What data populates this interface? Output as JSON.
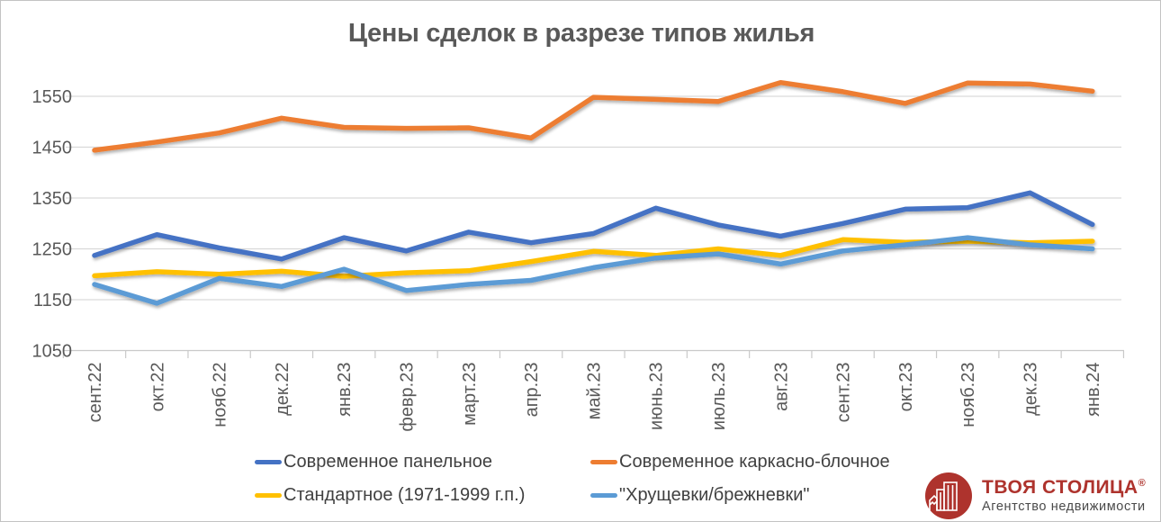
{
  "title": "Цены сделок в разрезе типов жилья",
  "chart_data": {
    "type": "line",
    "title": "Цены сделок в разрезе типов жилья",
    "categories": [
      "сент.22",
      "окт.22",
      "нояб.22",
      "дек.22",
      "янв.23",
      "февр.23",
      "март.23",
      "апр.23",
      "май.23",
      "июнь.23",
      "июль.23",
      "авг.23",
      "сент.23",
      "окт.23",
      "нояб.23",
      "дек.23",
      "янв.24"
    ],
    "series": [
      {
        "name": "Современное панельное",
        "color": "#4472C4",
        "values": [
          1237,
          1278,
          1252,
          1230,
          1272,
          1246,
          1283,
          1262,
          1280,
          1330,
          1297,
          1275,
          1300,
          1328,
          1331,
          1360,
          1298
        ]
      },
      {
        "name": "Современное каркасно-блочное",
        "color": "#ED7D31",
        "values": [
          1444,
          1460,
          1478,
          1507,
          1489,
          1487,
          1488,
          1468,
          1548,
          1544,
          1540,
          1577,
          1559,
          1536,
          1576,
          1574,
          1560
        ]
      },
      {
        "name": "Стандартное (1971-1999 г.п.)",
        "color": "#FFC000",
        "values": [
          1197,
          1205,
          1200,
          1206,
          1196,
          1203,
          1207,
          1225,
          1245,
          1237,
          1250,
          1237,
          1268,
          1263,
          1265,
          1262,
          1265
        ]
      },
      {
        "name": "\"Хрущевки/брежневки\"",
        "color": "#5B9BD5",
        "values": [
          1180,
          1143,
          1192,
          1176,
          1210,
          1168,
          1180,
          1188,
          1213,
          1232,
          1240,
          1220,
          1246,
          1258,
          1272,
          1258,
          1250
        ]
      }
    ],
    "yticks": [
      1050,
      1150,
      1250,
      1350,
      1450,
      1550
    ],
    "ylim": [
      1050,
      1650
    ],
    "grid": true,
    "legend_position": "bottom"
  },
  "colors": {
    "title": "#595959",
    "axis_labels": "#595959",
    "gridline": "#D9D9D9",
    "axis_line": "#C9C9C9",
    "legend_text": "#404040",
    "background": "#FFFFFF",
    "logo_red": "#AE332D",
    "logo_tagline": "#4A4A4A"
  },
  "logo": {
    "brand": "ТВОЯ СТОЛИЦА",
    "reg": "®",
    "tagline": "Агентство недвижимости"
  }
}
